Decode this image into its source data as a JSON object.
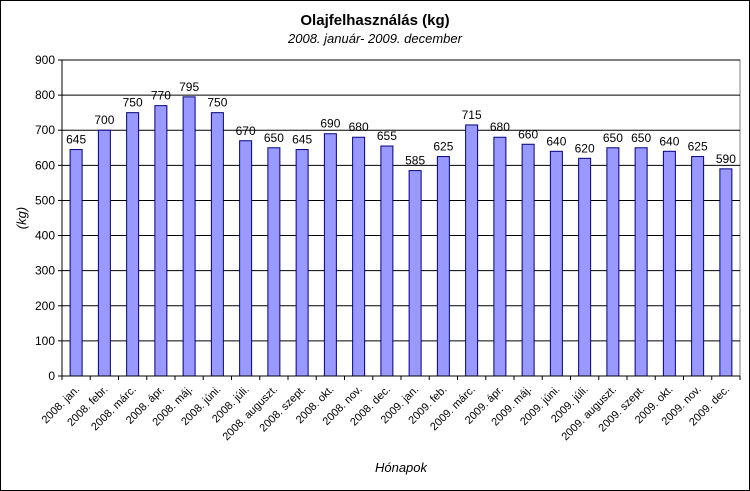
{
  "chart_data": {
    "type": "bar",
    "title": "Olajfelhasználás  (kg)",
    "subtitle": "2008. január- 2009. december",
    "xlabel": "Hónapok",
    "ylabel": "(kg)",
    "ylim": [
      0,
      900
    ],
    "yticks": [
      0,
      100,
      200,
      300,
      400,
      500,
      600,
      700,
      800,
      900
    ],
    "grid": true,
    "bar_color": "#9999FF",
    "bar_edge": "#000080",
    "categories": [
      "2008. jan.",
      "2008. febr.",
      "2008. márc.",
      "2008. ápr.",
      "2008. máj.",
      "2008. júni.",
      "2008. júli.",
      "2008. auguszt.",
      "2008. szept.",
      "2008. okt.",
      "2008. nov.",
      "2008. dec.",
      "2009. jan.",
      "2009. feb.",
      "2009. márc.",
      "2009. ápr.",
      "2009. máj.",
      "2009. júni.",
      "2009. júli.",
      "2009. auguszt.",
      "2009. szept.",
      "2009. okt.",
      "2009. nov.",
      "2009. dec."
    ],
    "values": [
      645,
      700,
      750,
      770,
      795,
      750,
      670,
      650,
      645,
      690,
      680,
      655,
      585,
      625,
      715,
      680,
      660,
      640,
      620,
      650,
      650,
      640,
      625,
      590
    ]
  }
}
